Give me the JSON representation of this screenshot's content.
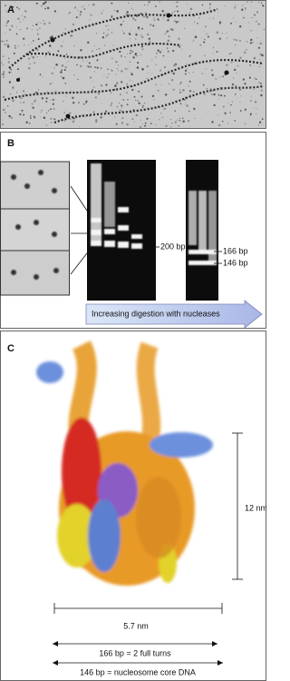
{
  "panels": [
    {
      "label": "A"
    },
    {
      "label": "B",
      "gel_labels": [
        "200 bp",
        "166 bp",
        "146 bp"
      ],
      "arrow": "Increasing digestion with nucleases"
    },
    {
      "label": "C",
      "scale_vertical": "12 nm",
      "scale_horizontal": "5.7 nm",
      "notes": [
        "166 bp = 2 full turns",
        "146 bp = nucleosome core DNA"
      ]
    }
  ]
}
